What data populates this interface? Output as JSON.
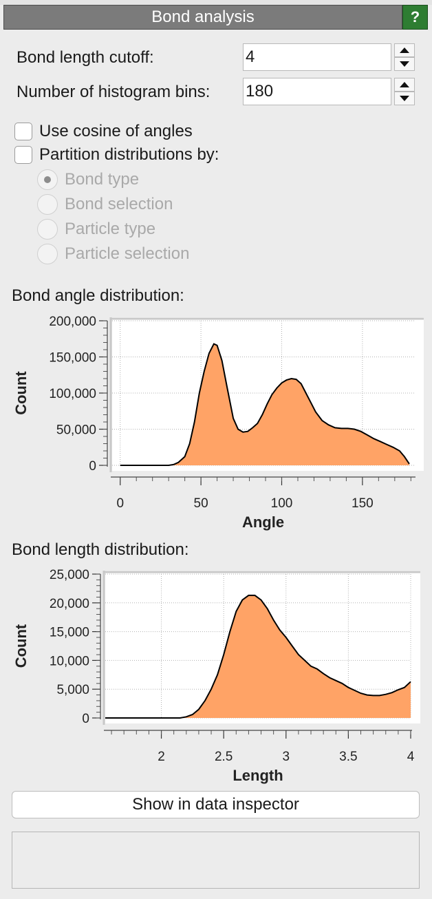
{
  "panel": {
    "title": "Bond analysis",
    "help_label": "?",
    "accent": "#2e7d32",
    "help_icon": "question-mark-icon"
  },
  "fields": {
    "cutoff_label": "Bond length cutoff:",
    "cutoff_value": "4",
    "bins_label": "Number of histogram bins:",
    "bins_value": "180"
  },
  "options": {
    "cosine_label": "Use cosine of angles",
    "cosine_checked": false,
    "partition_label": "Partition distributions by:",
    "partition_checked": false,
    "radios": [
      {
        "label": "Bond type",
        "selected": true
      },
      {
        "label": "Bond selection",
        "selected": false
      },
      {
        "label": "Particle type",
        "selected": false
      },
      {
        "label": "Particle selection",
        "selected": false
      }
    ]
  },
  "angle_section_label": "Bond angle distribution:",
  "length_section_label": "Bond length distribution:",
  "chart_data": [
    {
      "type": "area",
      "xlabel": "Angle",
      "ylabel": "Count",
      "xlim": [
        -5,
        182
      ],
      "ylim": [
        0,
        200000
      ],
      "xticks": [
        "0",
        "50",
        "100",
        "150"
      ],
      "yticks": [
        "0",
        "50,000",
        "100,000",
        "150,000",
        "200,000"
      ],
      "grid": true,
      "fill": "#ffa366",
      "x": [
        0,
        10,
        20,
        30,
        33,
        36,
        40,
        43,
        46,
        49,
        52,
        55,
        58,
        60,
        63,
        66,
        70,
        73,
        76,
        79,
        82,
        85,
        88,
        91,
        94,
        97,
        100,
        103,
        106,
        109,
        112,
        115,
        118,
        121,
        125,
        129,
        133,
        137,
        141,
        145,
        149,
        153,
        157,
        161,
        165,
        169,
        173,
        176,
        179
      ],
      "y": [
        0,
        0,
        0,
        0,
        1000,
        4000,
        12000,
        30000,
        60000,
        100000,
        130000,
        155000,
        168000,
        166000,
        145000,
        110000,
        65000,
        50000,
        46000,
        47000,
        52000,
        58000,
        70000,
        85000,
        98000,
        107000,
        114000,
        118000,
        120000,
        119000,
        113000,
        100000,
        87000,
        74000,
        62000,
        56000,
        52000,
        51000,
        51000,
        50000,
        47000,
        42000,
        37000,
        33000,
        29000,
        25000,
        20000,
        12000,
        2000
      ]
    },
    {
      "type": "area",
      "xlabel": "Length",
      "ylabel": "Count",
      "xlim": [
        1.55,
        4
      ],
      "ylim": [
        0,
        25000
      ],
      "xticks": [
        "2",
        "2.5",
        "3",
        "3.5",
        "4"
      ],
      "yticks": [
        "0",
        "5,000",
        "10,000",
        "15,000",
        "20,000",
        "25,000"
      ],
      "grid": true,
      "fill": "#ffa366",
      "x": [
        1.55,
        1.8,
        2.0,
        2.15,
        2.2,
        2.25,
        2.3,
        2.35,
        2.4,
        2.45,
        2.5,
        2.55,
        2.6,
        2.65,
        2.7,
        2.75,
        2.8,
        2.85,
        2.9,
        2.95,
        3.0,
        3.05,
        3.1,
        3.15,
        3.2,
        3.25,
        3.3,
        3.35,
        3.4,
        3.45,
        3.5,
        3.55,
        3.6,
        3.65,
        3.7,
        3.75,
        3.8,
        3.85,
        3.9,
        3.95,
        4.0
      ],
      "y": [
        0,
        0,
        0,
        0,
        200,
        600,
        1500,
        3000,
        5000,
        7500,
        11000,
        15000,
        18500,
        20500,
        21300,
        21300,
        20500,
        19000,
        17000,
        15300,
        14000,
        12500,
        11000,
        10000,
        9000,
        8500,
        7700,
        7000,
        6500,
        6000,
        5300,
        4800,
        4300,
        4000,
        3900,
        3900,
        4100,
        4400,
        4900,
        5300,
        6300
      ]
    }
  ],
  "inspector_button": "Show in data inspector"
}
